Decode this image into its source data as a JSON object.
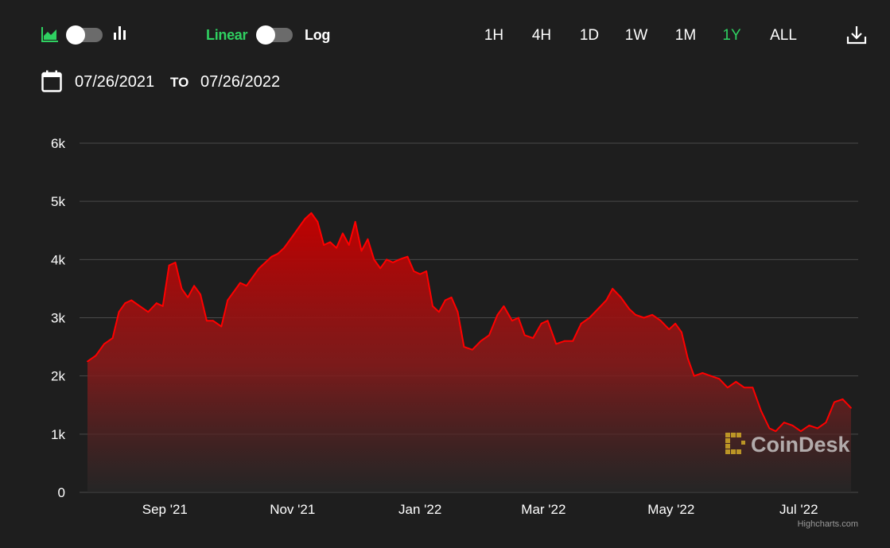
{
  "toolbar": {
    "chart_type_icons": [
      "area-chart-icon",
      "bar-chart-icon"
    ],
    "scale": {
      "linear_label": "Linear",
      "log_label": "Log",
      "selected": "Linear"
    },
    "ranges": [
      "1H",
      "4H",
      "1D",
      "1W",
      "1M",
      "1Y",
      "ALL"
    ],
    "active_range": "1Y",
    "download_icon": "download-icon"
  },
  "date_range": {
    "from": "07/26/2021",
    "to_label": "TO",
    "to": "07/26/2022",
    "icon": "calendar-icon"
  },
  "colors": {
    "accent": "#2fd161",
    "series": "#ff0000",
    "background": "#1e1e1e",
    "grid": "#4a4a4a",
    "watermark": "#c9a227"
  },
  "watermark": "CoinDesk",
  "credits": "Highcharts.com",
  "chart_data": {
    "type": "area",
    "title": "",
    "xlabel": "",
    "ylabel": "",
    "x_range": [
      "2021-07-26",
      "2022-07-26"
    ],
    "ylim": [
      0,
      6000
    ],
    "y_ticks": [
      "0",
      "1k",
      "2k",
      "3k",
      "4k",
      "5k",
      "6k"
    ],
    "y_tick_values": [
      0,
      1000,
      2000,
      3000,
      4000,
      5000,
      6000
    ],
    "x_ticks": [
      "Sep '21",
      "Nov '21",
      "Jan '22",
      "Mar '22",
      "May '22",
      "Jul '22"
    ],
    "x_tick_dates": [
      "2021-09-01",
      "2021-11-01",
      "2022-01-01",
      "2022-03-01",
      "2022-05-01",
      "2022-07-01"
    ],
    "grid": true,
    "legend": "none",
    "series": [
      {
        "color": "#ff0000",
        "points": [
          [
            "2021-07-26",
            2250
          ],
          [
            "2021-07-30",
            2350
          ],
          [
            "2021-08-03",
            2550
          ],
          [
            "2021-08-07",
            2650
          ],
          [
            "2021-08-10",
            3100
          ],
          [
            "2021-08-13",
            3250
          ],
          [
            "2021-08-16",
            3300
          ],
          [
            "2021-08-20",
            3200
          ],
          [
            "2021-08-24",
            3100
          ],
          [
            "2021-08-28",
            3250
          ],
          [
            "2021-08-31",
            3200
          ],
          [
            "2021-09-03",
            3900
          ],
          [
            "2021-09-06",
            3950
          ],
          [
            "2021-09-09",
            3500
          ],
          [
            "2021-09-12",
            3350
          ],
          [
            "2021-09-15",
            3550
          ],
          [
            "2021-09-18",
            3400
          ],
          [
            "2021-09-21",
            2950
          ],
          [
            "2021-09-24",
            2950
          ],
          [
            "2021-09-28",
            2850
          ],
          [
            "2021-10-01",
            3300
          ],
          [
            "2021-10-04",
            3450
          ],
          [
            "2021-10-07",
            3600
          ],
          [
            "2021-10-10",
            3550
          ],
          [
            "2021-10-13",
            3700
          ],
          [
            "2021-10-16",
            3850
          ],
          [
            "2021-10-19",
            3950
          ],
          [
            "2021-10-22",
            4050
          ],
          [
            "2021-10-25",
            4100
          ],
          [
            "2021-10-28",
            4200
          ],
          [
            "2021-11-01",
            4400
          ],
          [
            "2021-11-04",
            4550
          ],
          [
            "2021-11-07",
            4700
          ],
          [
            "2021-11-10",
            4800
          ],
          [
            "2021-11-13",
            4650
          ],
          [
            "2021-11-16",
            4250
          ],
          [
            "2021-11-19",
            4300
          ],
          [
            "2021-11-22",
            4200
          ],
          [
            "2021-11-25",
            4450
          ],
          [
            "2021-11-28",
            4250
          ],
          [
            "2021-12-01",
            4650
          ],
          [
            "2021-12-04",
            4150
          ],
          [
            "2021-12-07",
            4350
          ],
          [
            "2021-12-10",
            4000
          ],
          [
            "2021-12-13",
            3850
          ],
          [
            "2021-12-16",
            4000
          ],
          [
            "2021-12-19",
            3950
          ],
          [
            "2021-12-22",
            4000
          ],
          [
            "2021-12-26",
            4050
          ],
          [
            "2021-12-29",
            3800
          ],
          [
            "2022-01-01",
            3750
          ],
          [
            "2022-01-04",
            3800
          ],
          [
            "2022-01-07",
            3200
          ],
          [
            "2022-01-10",
            3100
          ],
          [
            "2022-01-13",
            3300
          ],
          [
            "2022-01-16",
            3350
          ],
          [
            "2022-01-19",
            3100
          ],
          [
            "2022-01-22",
            2500
          ],
          [
            "2022-01-26",
            2450
          ],
          [
            "2022-01-30",
            2600
          ],
          [
            "2022-02-03",
            2700
          ],
          [
            "2022-02-07",
            3050
          ],
          [
            "2022-02-10",
            3200
          ],
          [
            "2022-02-14",
            2950
          ],
          [
            "2022-02-17",
            3000
          ],
          [
            "2022-02-20",
            2700
          ],
          [
            "2022-02-24",
            2650
          ],
          [
            "2022-02-28",
            2900
          ],
          [
            "2022-03-03",
            2950
          ],
          [
            "2022-03-07",
            2550
          ],
          [
            "2022-03-11",
            2600
          ],
          [
            "2022-03-15",
            2600
          ],
          [
            "2022-03-19",
            2900
          ],
          [
            "2022-03-23",
            3000
          ],
          [
            "2022-03-27",
            3150
          ],
          [
            "2022-03-31",
            3300
          ],
          [
            "2022-04-03",
            3500
          ],
          [
            "2022-04-07",
            3350
          ],
          [
            "2022-04-11",
            3150
          ],
          [
            "2022-04-14",
            3050
          ],
          [
            "2022-04-18",
            3000
          ],
          [
            "2022-04-22",
            3050
          ],
          [
            "2022-04-26",
            2950
          ],
          [
            "2022-04-30",
            2800
          ],
          [
            "2022-05-03",
            2900
          ],
          [
            "2022-05-06",
            2750
          ],
          [
            "2022-05-09",
            2300
          ],
          [
            "2022-05-12",
            2000
          ],
          [
            "2022-05-16",
            2050
          ],
          [
            "2022-05-20",
            2000
          ],
          [
            "2022-05-24",
            1950
          ],
          [
            "2022-05-28",
            1800
          ],
          [
            "2022-06-01",
            1900
          ],
          [
            "2022-06-05",
            1800
          ],
          [
            "2022-06-09",
            1800
          ],
          [
            "2022-06-13",
            1400
          ],
          [
            "2022-06-17",
            1100
          ],
          [
            "2022-06-20",
            1050
          ],
          [
            "2022-06-24",
            1200
          ],
          [
            "2022-06-28",
            1150
          ],
          [
            "2022-07-02",
            1050
          ],
          [
            "2022-07-06",
            1150
          ],
          [
            "2022-07-10",
            1100
          ],
          [
            "2022-07-14",
            1200
          ],
          [
            "2022-07-18",
            1550
          ],
          [
            "2022-07-22",
            1600
          ],
          [
            "2022-07-26",
            1450
          ]
        ]
      }
    ]
  }
}
